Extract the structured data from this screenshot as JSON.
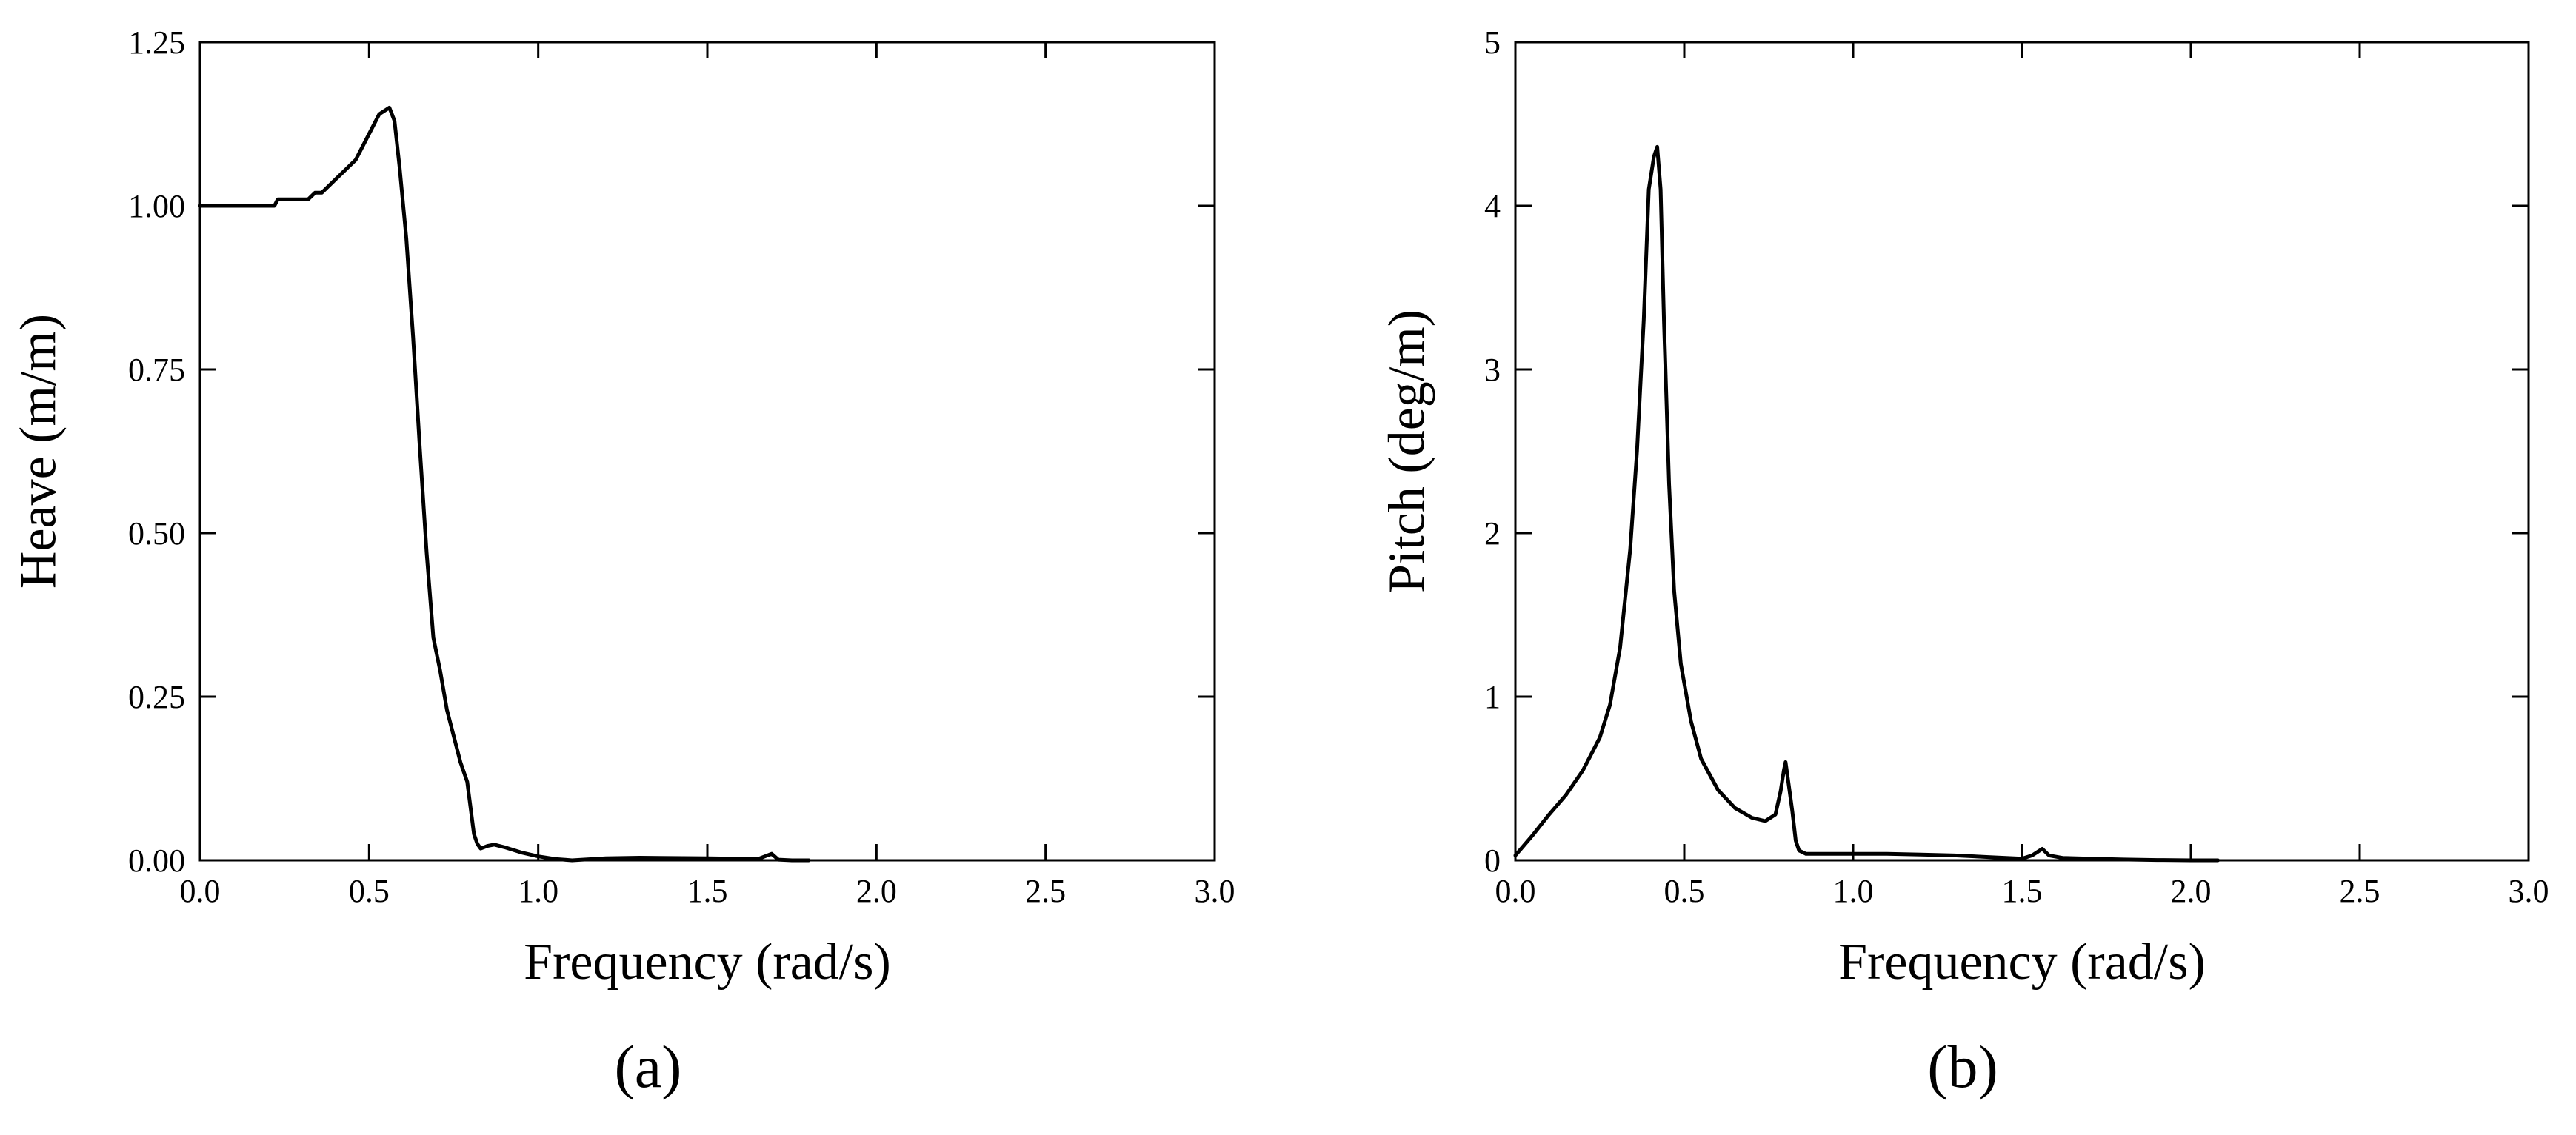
{
  "chart_data": [
    {
      "type": "line",
      "panel_label": "(a)",
      "xlabel": "Frequency (rad/s)",
      "ylabel": "Heave (m/m)",
      "xlim": [
        0,
        3
      ],
      "ylim": [
        0,
        1.25
      ],
      "x_ticks": [
        "0.0",
        "0.5",
        "1.0",
        "1.5",
        "2.0",
        "2.5",
        "3.0"
      ],
      "y_ticks": [
        "0.00",
        "0.25",
        "0.50",
        "0.75",
        "1.00",
        "1.25"
      ],
      "grid": false,
      "series": [
        {
          "x": [
            0.0,
            0.1,
            0.22,
            0.23,
            0.32,
            0.34,
            0.36,
            0.4,
            0.46,
            0.5,
            0.53,
            0.56,
            0.575,
            0.59,
            0.61,
            0.63,
            0.65,
            0.67,
            0.69,
            0.71,
            0.73,
            0.75,
            0.77,
            0.79,
            0.81,
            0.82,
            0.83,
            0.85,
            0.87,
            0.9,
            0.95,
            1.0,
            1.05,
            1.1,
            1.2,
            1.3,
            1.5,
            1.65,
            1.69,
            1.71,
            1.75,
            1.8
          ],
          "y": [
            1.0,
            1.0,
            1.0,
            1.01,
            1.01,
            1.02,
            1.02,
            1.04,
            1.07,
            1.11,
            1.14,
            1.15,
            1.13,
            1.06,
            0.95,
            0.8,
            0.63,
            0.47,
            0.34,
            0.29,
            0.23,
            0.19,
            0.15,
            0.12,
            0.04,
            0.025,
            0.018,
            0.022,
            0.024,
            0.02,
            0.012,
            0.006,
            0.002,
            0.0,
            0.003,
            0.004,
            0.003,
            0.002,
            0.01,
            0.001,
            0.0,
            0.0
          ]
        }
      ]
    },
    {
      "type": "line",
      "panel_label": "(b)",
      "xlabel": "Frequency (rad/s)",
      "ylabel": "Pitch (deg/m)",
      "xlim": [
        0,
        3
      ],
      "ylim": [
        0,
        5
      ],
      "x_ticks": [
        "0.0",
        "0.5",
        "1.0",
        "1.5",
        "2.0",
        "2.5",
        "3.0"
      ],
      "y_ticks": [
        "0",
        "1",
        "2",
        "3",
        "4",
        "5"
      ],
      "grid": false,
      "series": [
        {
          "x": [
            0.0,
            0.05,
            0.1,
            0.15,
            0.2,
            0.25,
            0.28,
            0.31,
            0.34,
            0.36,
            0.38,
            0.395,
            0.41,
            0.42,
            0.43,
            0.44,
            0.455,
            0.47,
            0.49,
            0.52,
            0.55,
            0.6,
            0.65,
            0.7,
            0.74,
            0.77,
            0.785,
            0.795,
            0.8,
            0.81,
            0.82,
            0.83,
            0.84,
            0.86,
            0.9,
            1.0,
            1.1,
            1.2,
            1.3,
            1.4,
            1.5,
            1.53,
            1.56,
            1.58,
            1.62,
            1.7,
            1.8,
            1.9,
            2.0,
            2.08
          ],
          "y": [
            0.03,
            0.15,
            0.28,
            0.4,
            0.55,
            0.75,
            0.95,
            1.3,
            1.9,
            2.5,
            3.3,
            4.1,
            4.3,
            4.36,
            4.1,
            3.3,
            2.3,
            1.65,
            1.2,
            0.85,
            0.62,
            0.43,
            0.32,
            0.26,
            0.24,
            0.28,
            0.42,
            0.55,
            0.6,
            0.45,
            0.3,
            0.12,
            0.06,
            0.04,
            0.04,
            0.04,
            0.04,
            0.035,
            0.03,
            0.02,
            0.01,
            0.03,
            0.07,
            0.03,
            0.015,
            0.01,
            0.005,
            0.002,
            0.0,
            0.0
          ]
        }
      ]
    }
  ]
}
